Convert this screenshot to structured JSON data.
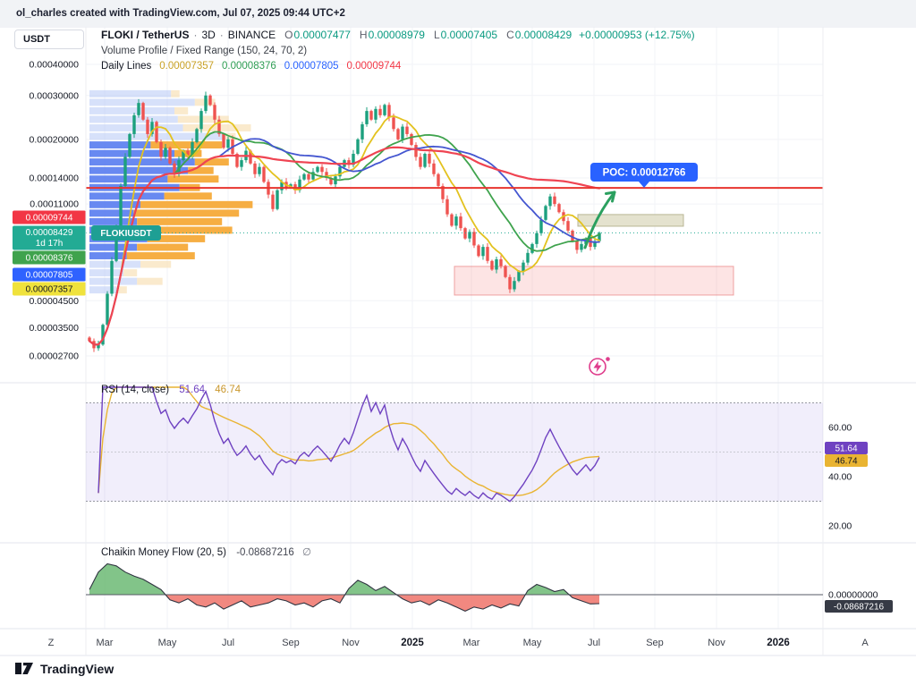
{
  "meta": {
    "attribution": "ol_charles created with TradingView.com, Jul 07, 2025 09:44 UTC+2"
  },
  "header": {
    "currency_button": "USDT",
    "symbol": "FLOKI / TetherUS",
    "separator": "·",
    "interval": "3D",
    "exchange": "BINANCE",
    "ohlc": {
      "o_label": "O",
      "o": "0.00007477",
      "h_label": "H",
      "h": "0.00008979",
      "l_label": "L",
      "l": "0.00007405",
      "c_label": "C",
      "c": "0.00008429",
      "change": "+0.00000953 (+12.75%)"
    },
    "indicator_vp": "Volume Profile / Fixed Range (150, 24, 70, 2)",
    "indicator_daily": {
      "name": "Daily Lines",
      "v1": "0.00007357",
      "v2": "0.00008376",
      "v3": "0.00007805",
      "v4": "0.00009744"
    }
  },
  "footer": {
    "brand": "TradingView"
  },
  "chart_data": {
    "type": "candlestick",
    "title": "FLOKI / TetherUS · 3D · BINANCE",
    "symbol_tag": "FLOKIUSDT",
    "y_scale": "log",
    "y_ticks": [
      "0.00040000",
      "0.00030000",
      "0.00020000",
      "0.00014000",
      "0.00011000",
      "0.00004500",
      "0.00003500",
      "0.00002700"
    ],
    "x_labels": [
      "Z",
      "Mar",
      "May",
      "Jul",
      "Sep",
      "Nov",
      "2025",
      "Mar",
      "May",
      "Jul",
      "Sep",
      "Nov",
      "2026",
      "A"
    ],
    "first_open": 3.2e-05,
    "closes": [
      3.1e-05,
      2.9e-05,
      3e-05,
      3.6e-05,
      4.8e-05,
      6.5e-05,
      9e-05,
      0.00013,
      0.00017,
      0.00021,
      0.00025,
      0.00028,
      0.00024,
      0.00021,
      0.000235,
      0.000195,
      0.00017,
      0.000185,
      0.00016,
      0.000145,
      0.000165,
      0.00018,
      0.00017,
      0.000195,
      0.00022,
      0.00026,
      0.0003,
      0.000275,
      0.00024,
      0.00021,
      0.000185,
      0.0002,
      0.000175,
      0.000155,
      0.000165,
      0.00018,
      0.00016,
      0.000145,
      0.000155,
      0.000135,
      0.00012,
      0.000105,
      0.000125,
      0.000135,
      0.000128,
      0.000132,
      0.000125,
      0.000138,
      0.000145,
      0.000138,
      0.000148,
      0.000155,
      0.000148,
      0.00014,
      0.000132,
      0.000142,
      0.000155,
      0.000165,
      0.000158,
      0.000175,
      0.0002,
      0.00023,
      0.00026,
      0.00024,
      0.000265,
      0.00025,
      0.000275,
      0.000245,
      0.00022,
      0.0002,
      0.000225,
      0.00021,
      0.00019,
      0.00017,
      0.000155,
      0.000175,
      0.00016,
      0.000145,
      0.00013,
      0.000115,
      0.0001,
      9e-05,
      9.8e-05,
      8.8e-05,
      8e-05,
      8.5e-05,
      7.5e-05,
      6.8e-05,
      7.4e-05,
      6.5e-05,
      6e-05,
      6.6e-05,
      6.2e-05,
      5.6e-05,
      5e-05,
      5.4e-05,
      5.9e-05,
      6.4e-05,
      7e-05,
      7.6e-05,
      8.4e-05,
      9.5e-05,
      0.000108,
      0.000118,
      0.00011,
      0.000102,
      9.4e-05,
      8.6e-05,
      7.8e-05,
      7.2e-05,
      7.6e-05,
      8e-05,
      7.4e-05,
      7.8e-05,
      8.429e-05
    ],
    "candle_colors": {
      "up": "#1ca07e",
      "down": "#ef5350"
    },
    "overlays": [
      {
        "name": "daily-line-yellow",
        "color": "#e3c21f",
        "period": 8
      },
      {
        "name": "daily-line-green",
        "color": "#3fa34d",
        "period": 20
      },
      {
        "name": "daily-line-blue",
        "color": "#4456d0",
        "period": 30
      },
      {
        "name": "daily-line-red",
        "color": "#ef4452",
        "period": 60
      }
    ],
    "poc": {
      "value": 0.00012766,
      "label": "POC: 0.00012766",
      "badge_color": "#2962ff",
      "line_color": "#e8342e"
    },
    "last_price": {
      "value": 8.429e-05,
      "label": "0.00008429",
      "countdown": "1d 17h",
      "color": "#22ab94"
    },
    "axis_badges": [
      {
        "text": "0.00009744",
        "bg": "#f23645",
        "fg": "#ffffff",
        "price": 9.744e-05
      },
      {
        "text": "0.00008376",
        "bg": "#3fa34d",
        "fg": "#ffffff",
        "price": 8.376e-05
      },
      {
        "text": "0.00007805",
        "bg": "#2f62ff",
        "fg": "#ffffff",
        "price": 7.805e-05
      },
      {
        "text": "0.00007357",
        "bg": "#f0e23c",
        "fg": "#131722",
        "price": 7.357e-05
      }
    ],
    "zones": [
      {
        "name": "demand-zone-lower",
        "price_from": 4.74e-05,
        "price_to": 6.18e-05,
        "x_from": 508,
        "x_to": 820,
        "fill": "rgba(240,90,90,0.16)",
        "stroke": "rgba(226,95,95,0.55)"
      },
      {
        "name": "supply-zone-upper",
        "price_from": 8.96e-05,
        "price_to": 9.98e-05,
        "x_from": 646,
        "x_to": 764,
        "fill": "rgba(223,221,197,0.85)",
        "stroke": "#b9b694"
      }
    ],
    "volume_profile": {
      "price_top": 0.000315,
      "price_bottom": 4.75e-05,
      "colors": {
        "up": "#587cf0",
        "down": "#f5a733",
        "up_faded": "#b6c8f6",
        "down_faded": "#f6dcab"
      },
      "rows": [
        [
          0.48,
          0.05,
          1
        ],
        [
          0.62,
          0.12,
          1
        ],
        [
          0.5,
          0.08,
          1
        ],
        [
          0.52,
          0.3,
          1
        ],
        [
          0.55,
          0.4,
          1
        ],
        [
          0.8,
          0.06,
          1
        ],
        [
          0.36,
          0.42,
          0
        ],
        [
          0.5,
          0.16,
          0
        ],
        [
          0.62,
          0.2,
          0
        ],
        [
          0.58,
          0.15,
          0
        ],
        [
          0.46,
          0.3,
          0
        ],
        [
          0.53,
          0.12,
          0
        ],
        [
          0.44,
          0.28,
          0
        ],
        [
          0.3,
          0.66,
          0
        ],
        [
          0.26,
          0.62,
          0
        ],
        [
          0.28,
          0.5,
          0
        ],
        [
          0.4,
          0.44,
          0
        ],
        [
          0.34,
          0.34,
          0
        ],
        [
          0.28,
          0.3,
          0
        ],
        [
          0.22,
          0.4,
          0
        ],
        [
          0.3,
          0.18,
          1
        ],
        [
          0.2,
          0.08,
          1
        ],
        [
          0.28,
          0.15,
          1
        ],
        [
          0.16,
          0.06,
          1
        ]
      ]
    },
    "rsi": {
      "title": "RSI (14, close)",
      "period": 14,
      "value": "51.64",
      "signal_value": "46.74",
      "line_color": "#6f42c1",
      "signal_color": "#e9b432",
      "band": [
        30,
        70
      ],
      "y_ticks": [
        "60.00",
        "40.00",
        "20.00"
      ]
    },
    "cmf": {
      "title": "Chaikin Money Flow (20, 5)",
      "value": "-0.08687216",
      "suffix": "∅",
      "zero_label": "0.00000000",
      "badge": "-0.08687216",
      "values": [
        0.05,
        0.22,
        0.3,
        0.28,
        0.22,
        0.18,
        0.15,
        0.1,
        0.05,
        -0.05,
        -0.08,
        -0.04,
        -0.1,
        -0.12,
        -0.08,
        -0.14,
        -0.1,
        -0.06,
        -0.12,
        -0.1,
        -0.08,
        -0.04,
        -0.06,
        -0.1,
        -0.08,
        -0.12,
        -0.06,
        -0.04,
        -0.08,
        0.06,
        0.14,
        0.1,
        0.04,
        0.08,
        0.02,
        -0.04,
        -0.08,
        -0.06,
        -0.1,
        -0.05,
        -0.08,
        -0.12,
        -0.16,
        -0.12,
        -0.14,
        -0.1,
        -0.13,
        -0.09,
        -0.11,
        0.04,
        0.1,
        0.07,
        0.03,
        0.05,
        -0.03,
        -0.06,
        -0.09,
        -0.0869
      ]
    }
  }
}
